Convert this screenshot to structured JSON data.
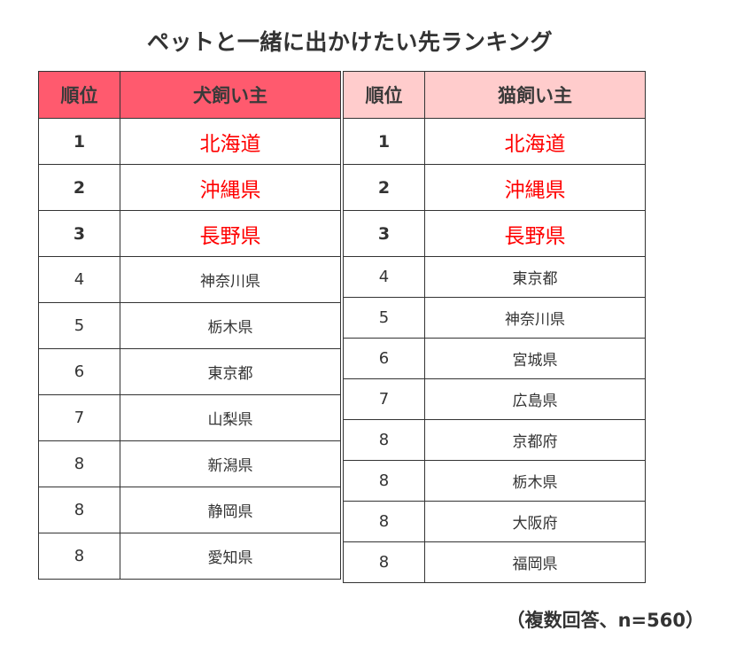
{
  "title": "ペットと一緒に出かけたい先ランキング",
  "colors": {
    "dog_header": "#ff5a6e",
    "cat_header": "#ffcccc",
    "top3_text": "#ff0000"
  },
  "dog_table": {
    "headers": [
      "順位",
      "犬飼い主"
    ],
    "rows": [
      {
        "rank": "1",
        "place": "北海道"
      },
      {
        "rank": "2",
        "place": "沖縄県"
      },
      {
        "rank": "3",
        "place": "長野県"
      },
      {
        "rank": "4",
        "place": "神奈川県"
      },
      {
        "rank": "5",
        "place": "栃木県"
      },
      {
        "rank": "6",
        "place": "東京都"
      },
      {
        "rank": "7",
        "place": "山梨県"
      },
      {
        "rank": "8",
        "place": "新潟県"
      },
      {
        "rank": "8",
        "place": "静岡県"
      },
      {
        "rank": "8",
        "place": "愛知県"
      }
    ]
  },
  "cat_table": {
    "headers": [
      "順位",
      "猫飼い主"
    ],
    "rows": [
      {
        "rank": "1",
        "place": "北海道"
      },
      {
        "rank": "2",
        "place": "沖縄県"
      },
      {
        "rank": "3",
        "place": "長野県"
      },
      {
        "rank": "4",
        "place": "東京都"
      },
      {
        "rank": "5",
        "place": "神奈川県"
      },
      {
        "rank": "6",
        "place": "宮城県"
      },
      {
        "rank": "7",
        "place": "広島県"
      },
      {
        "rank": "8",
        "place": "京都府"
      },
      {
        "rank": "8",
        "place": "栃木県"
      },
      {
        "rank": "8",
        "place": "大阪府"
      },
      {
        "rank": "8",
        "place": "福岡県"
      }
    ]
  },
  "footnote": "（複数回答、n=560）"
}
